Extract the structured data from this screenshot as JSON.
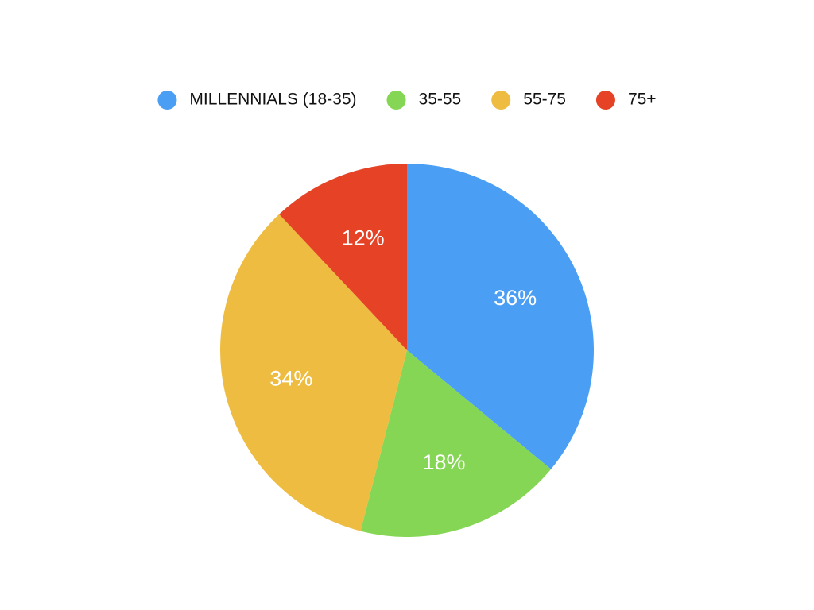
{
  "chart_data": {
    "type": "pie",
    "categories": [
      "MILLENNIALS (18-35)",
      "35-55",
      "55-75",
      "75+"
    ],
    "values": [
      36,
      18,
      34,
      12
    ],
    "value_labels": [
      "36%",
      "18%",
      "34%",
      "12%"
    ],
    "colors": [
      "#4a9ff5",
      "#86d655",
      "#edbc40",
      "#e64326"
    ],
    "legend": "top"
  }
}
